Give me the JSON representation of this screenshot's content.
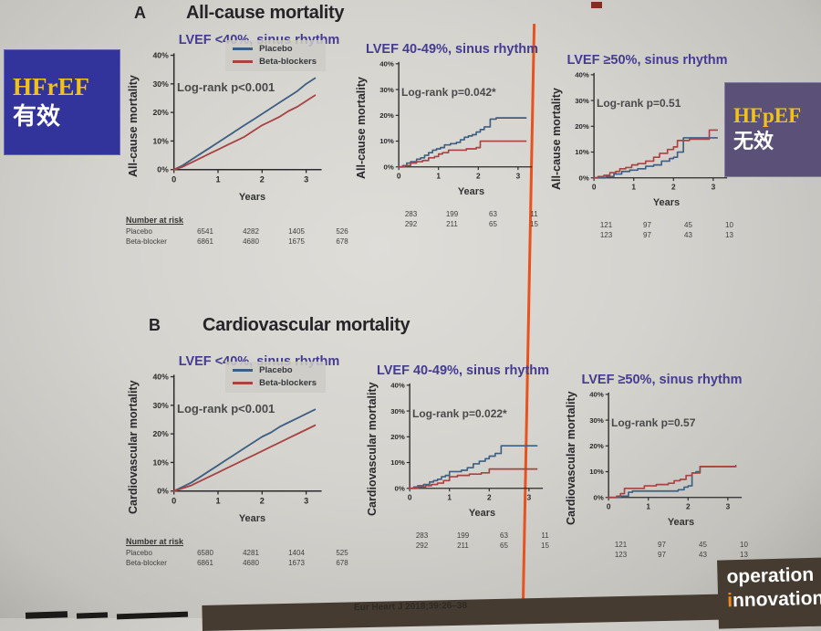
{
  "slide": {
    "section_a": {
      "label": "A",
      "title": "All-cause mortality"
    },
    "section_b": {
      "label": "B",
      "title": "Cardiovascular mortality"
    },
    "hfref_box": {
      "line1": "HFrEF",
      "line2": "有效"
    },
    "hfpef_box": {
      "line1": "HFpEF",
      "line2": "无效"
    },
    "citation": "Eur Heart J 2018;39:26–38",
    "corner": {
      "line1": "operation",
      "line2_prefix": "i",
      "line2_rest": "nnovation"
    }
  },
  "colors": {
    "placebo": "#3e5f82",
    "beta_blockers": "#a84343",
    "heading_purple": "#453c92",
    "accent_orange": "#e8521e",
    "hfref_bg": "#32339b",
    "hfpef_bg": "#5a5078",
    "accent_yellow": "#f2c21c",
    "band_brown": "#453b31",
    "corner_orange": "#f08a1d"
  },
  "chart_data": [
    {
      "id": "a1",
      "type": "line",
      "step": false,
      "heading": "LVEF <40%, sinus rhythm",
      "logrank": "Log-rank p<0.001",
      "ylabel": "All-cause mortality",
      "xlabel": "Years",
      "xlim": [
        0,
        3.35
      ],
      "ylim": [
        0,
        40
      ],
      "xticks": [
        0,
        1,
        2,
        3
      ],
      "yticks": [
        0,
        10,
        20,
        30,
        40
      ],
      "series": [
        {
          "name": "Placebo",
          "color": "#3e5f82",
          "x": [
            0,
            0.2,
            0.4,
            0.6,
            0.8,
            1.0,
            1.2,
            1.4,
            1.6,
            1.8,
            2.0,
            2.2,
            2.4,
            2.6,
            2.8,
            3.0,
            3.2
          ],
          "y": [
            0,
            1.5,
            3.5,
            5.5,
            7.5,
            9.5,
            11.5,
            13.5,
            15.5,
            17.5,
            19.5,
            21.5,
            23.5,
            25.5,
            27.5,
            30,
            32
          ]
        },
        {
          "name": "Beta-blockers",
          "color": "#a84343",
          "x": [
            0,
            0.2,
            0.4,
            0.6,
            0.8,
            1.0,
            1.2,
            1.4,
            1.6,
            1.8,
            2.0,
            2.2,
            2.4,
            2.6,
            2.8,
            3.0,
            3.2
          ],
          "y": [
            0,
            1,
            2.5,
            4,
            5.5,
            7,
            8.5,
            10,
            11.5,
            13.5,
            15.5,
            17,
            18.5,
            20.5,
            22,
            24,
            26
          ]
        }
      ],
      "risk": {
        "title": "Number at risk",
        "rows": [
          {
            "label": "Placebo",
            "values": [
              "6541",
              "4282",
              "1405",
              "526"
            ]
          },
          {
            "label": "Beta-blocker",
            "values": [
              "6861",
              "4680",
              "1675",
              "678"
            ]
          }
        ]
      }
    },
    {
      "id": "a2",
      "type": "line",
      "step": true,
      "heading": "LVEF 40-49%, sinus rhythm",
      "logrank": "Log-rank p=0.042*",
      "ylabel": "All-cause mortality",
      "xlabel": "Years",
      "xlim": [
        0,
        3.35
      ],
      "ylim": [
        0,
        40
      ],
      "xticks": [
        0,
        1,
        2,
        3
      ],
      "yticks": [
        0,
        10,
        20,
        30,
        40
      ],
      "series": [
        {
          "name": "Placebo",
          "color": "#3e5f82",
          "x": [
            0,
            0.1,
            0.2,
            0.3,
            0.45,
            0.55,
            0.65,
            0.75,
            0.85,
            0.95,
            1.05,
            1.15,
            1.3,
            1.45,
            1.55,
            1.65,
            1.75,
            1.85,
            1.95,
            2.05,
            2.15,
            2.3,
            2.45,
            3.2
          ],
          "y": [
            0,
            0.5,
            1.5,
            2,
            3,
            3.5,
            4.5,
            5.5,
            6.5,
            7,
            7.5,
            8.5,
            9,
            9.5,
            10.5,
            11.5,
            12,
            12.5,
            13.5,
            14.5,
            15.5,
            18.5,
            19,
            19
          ]
        },
        {
          "name": "Beta-blockers",
          "color": "#a84343",
          "x": [
            0,
            0.15,
            0.3,
            0.45,
            0.6,
            0.75,
            0.9,
            1.0,
            1.1,
            1.25,
            1.5,
            1.7,
            1.95,
            2.05,
            3.2
          ],
          "y": [
            0,
            0.5,
            1.5,
            2,
            2.5,
            3.5,
            4,
            5,
            5.5,
            6.5,
            6.5,
            7,
            7.5,
            10,
            10
          ]
        }
      ],
      "risk": {
        "title": "",
        "rows": [
          {
            "label": "",
            "values": [
              "283",
              "199",
              "63",
              "11"
            ]
          },
          {
            "label": "",
            "values": [
              "292",
              "211",
              "65",
              "15"
            ]
          }
        ]
      }
    },
    {
      "id": "a3",
      "type": "line",
      "step": true,
      "heading": "LVEF ≥50%, sinus rhythm",
      "logrank": "Log-rank p=0.51",
      "ylabel": "All-cause mortality",
      "xlabel": "Years",
      "xlim": [
        0,
        3.35
      ],
      "ylim": [
        0,
        40
      ],
      "xticks": [
        0,
        1,
        2,
        3
      ],
      "yticks": [
        0,
        10,
        20,
        30,
        40
      ],
      "series": [
        {
          "name": "Placebo",
          "color": "#3e5f82",
          "x": [
            0,
            0.3,
            0.5,
            0.7,
            0.9,
            1.1,
            1.3,
            1.5,
            1.7,
            1.9,
            2.0,
            2.1,
            2.25,
            3.1
          ],
          "y": [
            0,
            0.5,
            1.5,
            2.5,
            3,
            3.5,
            4.5,
            5,
            6.5,
            7.5,
            8,
            10,
            15.5,
            15.5
          ]
        },
        {
          "name": "Beta-blockers",
          "color": "#a84343",
          "x": [
            0,
            0.1,
            0.25,
            0.4,
            0.55,
            0.65,
            0.8,
            0.95,
            1.1,
            1.3,
            1.5,
            1.65,
            1.85,
            2.0,
            2.1,
            2.4,
            2.9,
            3.1
          ],
          "y": [
            0,
            0.5,
            1,
            2,
            2.5,
            3.5,
            4,
            5,
            5.5,
            6.5,
            8,
            9.5,
            11,
            12,
            14.5,
            15,
            18.5,
            18.5
          ]
        }
      ],
      "risk": {
        "title": "",
        "rows": [
          {
            "label": "",
            "values": [
              "121",
              "97",
              "45",
              "10"
            ]
          },
          {
            "label": "",
            "values": [
              "123",
              "97",
              "43",
              "13"
            ]
          }
        ]
      }
    },
    {
      "id": "b1",
      "type": "line",
      "step": false,
      "heading": "LVEF <40%, sinus rhythm",
      "logrank": "Log-rank p<0.001",
      "ylabel": "Cardiovascular mortality",
      "xlabel": "Years",
      "xlim": [
        0,
        3.35
      ],
      "ylim": [
        0,
        40
      ],
      "xticks": [
        0,
        1,
        2,
        3
      ],
      "yticks": [
        0,
        10,
        20,
        30,
        40
      ],
      "series": [
        {
          "name": "Placebo",
          "color": "#3e5f82",
          "x": [
            0,
            0.2,
            0.4,
            0.6,
            0.8,
            1.0,
            1.2,
            1.4,
            1.6,
            1.8,
            2.0,
            2.2,
            2.4,
            2.6,
            2.8,
            3.0,
            3.2
          ],
          "y": [
            0,
            1.5,
            3,
            5,
            7,
            9,
            11,
            13,
            15,
            17,
            19,
            20.5,
            22.5,
            24,
            25.5,
            27,
            28.5
          ]
        },
        {
          "name": "Beta-blockers",
          "color": "#a84343",
          "x": [
            0,
            0.2,
            0.4,
            0.6,
            0.8,
            1.0,
            1.2,
            1.4,
            1.6,
            1.8,
            2.0,
            2.2,
            2.4,
            2.6,
            2.8,
            3.0,
            3.2
          ],
          "y": [
            0,
            1,
            2,
            3.5,
            5,
            6.5,
            8,
            9.5,
            11,
            12.5,
            14,
            15.5,
            17,
            18.5,
            20,
            21.5,
            23
          ]
        }
      ],
      "risk": {
        "title": "Number at risk",
        "rows": [
          {
            "label": "Placebo",
            "values": [
              "6580",
              "4281",
              "1404",
              "525"
            ]
          },
          {
            "label": "Beta-blocker",
            "values": [
              "6861",
              "4680",
              "1673",
              "678"
            ]
          }
        ]
      }
    },
    {
      "id": "b2",
      "type": "line",
      "step": true,
      "heading": "LVEF 40-49%, sinus rhythm",
      "logrank": "Log-rank p=0.022*",
      "ylabel": "Cardiovascular mortality",
      "xlabel": "Years",
      "xlim": [
        0,
        3.35
      ],
      "ylim": [
        0,
        40
      ],
      "xticks": [
        0,
        1,
        2,
        3
      ],
      "yticks": [
        0,
        10,
        20,
        30,
        40
      ],
      "series": [
        {
          "name": "Placebo",
          "color": "#3e5f82",
          "x": [
            0,
            0.1,
            0.2,
            0.35,
            0.5,
            0.6,
            0.7,
            0.8,
            0.9,
            1.0,
            1.3,
            1.45,
            1.6,
            1.75,
            1.9,
            2.0,
            2.15,
            2.3,
            3.2
          ],
          "y": [
            0,
            0.5,
            1,
            1.5,
            2.5,
            3,
            3.5,
            4.5,
            5,
            6.5,
            7,
            8,
            9.5,
            10.5,
            11.5,
            12.5,
            13.5,
            16.5,
            16.5
          ]
        },
        {
          "name": "Beta-blockers",
          "color": "#a84343",
          "x": [
            0,
            0.2,
            0.4,
            0.55,
            0.7,
            0.85,
            1.0,
            1.2,
            1.5,
            1.8,
            2.0,
            3.2
          ],
          "y": [
            0,
            0.5,
            1,
            1.5,
            2,
            3,
            4.5,
            5,
            5.5,
            6,
            7.5,
            7.5
          ]
        }
      ],
      "risk": {
        "title": "",
        "rows": [
          {
            "label": "",
            "values": [
              "283",
              "199",
              "63",
              "11"
            ]
          },
          {
            "label": "",
            "values": [
              "292",
              "211",
              "65",
              "15"
            ]
          }
        ]
      }
    },
    {
      "id": "b3",
      "type": "line",
      "step": true,
      "heading": "LVEF ≥50%, sinus rhythm",
      "logrank": "Log-rank p=0.57",
      "ylabel": "Cardiovascular mortality",
      "xlabel": "Years",
      "xlim": [
        0,
        3.35
      ],
      "ylim": [
        0,
        40
      ],
      "xticks": [
        0,
        1,
        2,
        3
      ],
      "yticks": [
        0,
        10,
        20,
        30,
        40
      ],
      "series": [
        {
          "name": "Placebo",
          "color": "#3e5f82",
          "x": [
            0,
            0.3,
            0.5,
            0.6,
            1.6,
            1.75,
            1.9,
            2.0,
            2.1,
            2.2,
            2.3,
            3.2
          ],
          "y": [
            0,
            0.5,
            2,
            2.5,
            2.5,
            3,
            4,
            4.5,
            9.5,
            10,
            12,
            12.3
          ]
        },
        {
          "name": "Beta-blockers",
          "color": "#a84343",
          "x": [
            0,
            0.2,
            0.3,
            0.4,
            0.9,
            1.0,
            1.2,
            1.5,
            1.65,
            1.8,
            1.95,
            2.1,
            2.3,
            3.2
          ],
          "y": [
            0,
            0.5,
            1.5,
            3.5,
            4.5,
            4.5,
            5,
            5.5,
            6.5,
            7,
            8.5,
            9.5,
            12,
            12.3
          ]
        }
      ],
      "risk": {
        "title": "",
        "rows": [
          {
            "label": "",
            "values": [
              "121",
              "97",
              "45",
              "10"
            ]
          },
          {
            "label": "",
            "values": [
              "123",
              "97",
              "43",
              "13"
            ]
          }
        ]
      }
    }
  ]
}
